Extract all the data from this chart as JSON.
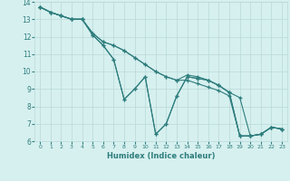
{
  "xlabel": "Humidex (Indice chaleur)",
  "bg_color": "#d6f0ef",
  "line_color": "#2e7d7d",
  "grid_color": "#b8d8d8",
  "xlim": [
    -0.5,
    23.5
  ],
  "ylim": [
    6,
    14
  ],
  "xticks": [
    0,
    1,
    2,
    3,
    4,
    5,
    6,
    7,
    8,
    9,
    10,
    11,
    12,
    13,
    14,
    15,
    16,
    17,
    18,
    19,
    20,
    21,
    22,
    23
  ],
  "yticks": [
    6,
    7,
    8,
    9,
    10,
    11,
    12,
    13,
    14
  ],
  "series": [
    {
      "x": [
        0,
        1,
        2,
        3,
        4,
        5,
        6,
        7,
        8,
        9,
        10,
        11,
        12,
        13,
        14,
        15,
        16,
        17,
        18,
        19,
        20,
        21,
        22,
        23
      ],
      "y": [
        13.7,
        13.4,
        13.2,
        13.0,
        13.0,
        12.2,
        11.7,
        11.5,
        11.2,
        10.8,
        10.4,
        10.0,
        9.7,
        9.5,
        9.8,
        9.7,
        9.5,
        9.2,
        8.8,
        8.5,
        6.3,
        6.4,
        6.8,
        6.7
      ]
    },
    {
      "x": [
        0,
        1,
        2,
        3,
        4,
        5,
        6,
        7,
        8,
        9,
        10,
        11,
        12,
        13,
        14,
        15,
        16,
        17,
        18,
        19,
        20,
        21,
        22,
        23
      ],
      "y": [
        13.7,
        13.4,
        13.2,
        13.0,
        13.0,
        12.2,
        11.7,
        11.5,
        11.2,
        10.8,
        10.4,
        10.0,
        9.7,
        9.5,
        9.5,
        9.3,
        9.1,
        8.9,
        8.6,
        6.3,
        6.3,
        6.4,
        6.8,
        6.7
      ]
    },
    {
      "x": [
        0,
        1,
        2,
        3,
        4,
        5,
        6,
        7,
        8,
        9,
        10,
        11,
        12,
        13,
        14,
        15,
        16,
        17,
        18,
        19,
        20,
        21,
        22,
        23
      ],
      "y": [
        13.7,
        13.4,
        13.2,
        13.0,
        13.0,
        12.1,
        11.5,
        10.7,
        8.4,
        9.0,
        9.7,
        6.4,
        7.0,
        8.6,
        9.7,
        9.6,
        9.5,
        9.2,
        8.8,
        6.3,
        6.3,
        6.4,
        6.8,
        6.7
      ]
    },
    {
      "x": [
        0,
        1,
        2,
        3,
        4,
        5,
        6,
        7,
        8,
        9,
        10,
        11,
        12,
        13,
        14,
        15,
        16,
        17,
        18,
        19,
        20,
        21,
        22,
        23
      ],
      "y": [
        13.7,
        13.4,
        13.2,
        13.0,
        13.0,
        12.1,
        11.5,
        10.7,
        8.4,
        9.0,
        9.7,
        6.4,
        7.0,
        8.6,
        9.7,
        9.6,
        9.5,
        9.2,
        8.8,
        6.3,
        6.3,
        6.4,
        6.8,
        6.7
      ]
    }
  ]
}
